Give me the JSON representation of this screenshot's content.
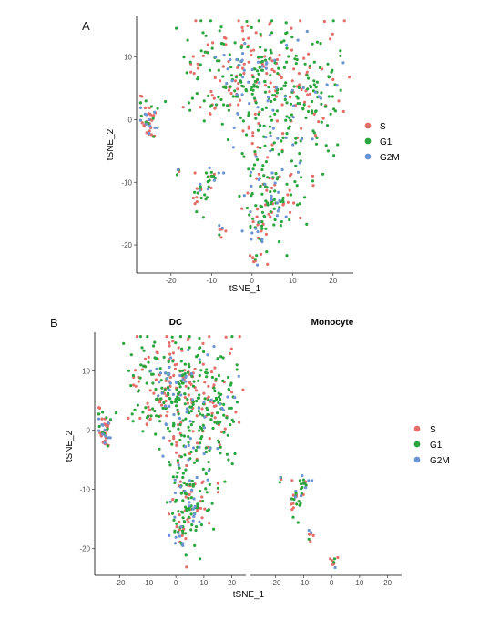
{
  "colors": {
    "S": "#E46E6A",
    "G1": "#2BA53E",
    "G2M": "#6C94D2"
  },
  "legend": [
    "S",
    "G1",
    "G2M"
  ],
  "panelA": {
    "letter": "A",
    "xlabel": "tSNE_1",
    "ylabel": "tSNE_2"
  },
  "panelB": {
    "letter": "B",
    "xlabel": "tSNE_1",
    "ylabel": "tSNE_2",
    "facets": [
      "DC",
      "Monocyte"
    ]
  },
  "chart_data": [
    {
      "type": "scatter",
      "panel": "A",
      "xlabel": "tSNE_1",
      "ylabel": "tSNE_2",
      "xlim": [
        -28.5,
        25
      ],
      "ylim": [
        -24.5,
        16.5
      ],
      "xticks": [
        -20,
        -10,
        0,
        10,
        20
      ],
      "yticks": [
        10,
        0,
        -10,
        -20
      ],
      "legend": [
        "S",
        "G1",
        "G2M"
      ],
      "grid": false,
      "series": [
        {
          "name": "S",
          "points": []
        },
        {
          "name": "G1",
          "points": []
        },
        {
          "name": "G2M",
          "points": []
        }
      ],
      "clusters": [
        {
          "cx": 0.5,
          "cy": 7.5,
          "sx": 9,
          "sy": 4.5,
          "n": 330,
          "mix": [
            0.34,
            0.54,
            0.12
          ]
        },
        {
          "cx": 15,
          "cy": 3,
          "sx": 4,
          "sy": 3.5,
          "n": 70,
          "mix": [
            0.3,
            0.58,
            0.12
          ]
        },
        {
          "cx": 5,
          "cy": -5,
          "sx": 5,
          "sy": 4.5,
          "n": 80,
          "mix": [
            0.22,
            0.64,
            0.14
          ]
        },
        {
          "cx": 4,
          "cy": -13,
          "sx": 3.5,
          "sy": 3.5,
          "n": 110,
          "mix": [
            0.26,
            0.56,
            0.18
          ]
        },
        {
          "cx": 2,
          "cy": -18.5,
          "sx": 1.3,
          "sy": 2.2,
          "n": 22,
          "mix": [
            0.4,
            0.4,
            0.2
          ]
        },
        {
          "cx": -25.5,
          "cy": 0,
          "sx": 1.3,
          "sy": 1.5,
          "n": 48,
          "mix": [
            0.5,
            0.25,
            0.25
          ]
        },
        {
          "cx": -12,
          "cy": -11,
          "sx": 1.5,
          "sy": 1.4,
          "n": 26,
          "mix": [
            0.25,
            0.65,
            0.1
          ]
        },
        {
          "cx": -9.5,
          "cy": -9.3,
          "sx": 0.9,
          "sy": 0.5,
          "n": 6,
          "mix": [
            0.34,
            0.33,
            0.33
          ]
        },
        {
          "cx": -18,
          "cy": -8.5,
          "sx": 0.4,
          "sy": 0.4,
          "n": 4,
          "mix": [
            0.2,
            0.3,
            0.5
          ]
        },
        {
          "cx": -10.5,
          "cy": -8.5,
          "sx": 0.5,
          "sy": 0.4,
          "n": 4,
          "mix": [
            0.2,
            0.3,
            0.5
          ]
        },
        {
          "cx": -7.5,
          "cy": -17.5,
          "sx": 0.7,
          "sy": 0.8,
          "n": 7,
          "mix": [
            0.45,
            0.15,
            0.4
          ]
        },
        {
          "cx": 0.5,
          "cy": -22.3,
          "sx": 0.6,
          "sy": 0.4,
          "n": 6,
          "mix": [
            0.55,
            0.2,
            0.25
          ]
        }
      ]
    },
    {
      "type": "scatter",
      "panel": "B",
      "facets": [
        "DC",
        "Monocyte"
      ],
      "xlabel": "tSNE_1",
      "ylabel": "tSNE_2",
      "xlim": [
        -29,
        25
      ],
      "ylim": [
        -24.5,
        16.5
      ],
      "xticks": [
        -20,
        -10,
        0,
        10,
        20
      ],
      "yticks": [
        10,
        0,
        -10,
        -20
      ],
      "legend": [
        "S",
        "G1",
        "G2M"
      ],
      "grid": false,
      "series": [
        {
          "name": "S",
          "points": []
        },
        {
          "name": "G1",
          "points": []
        },
        {
          "name": "G2M",
          "points": []
        }
      ]
    }
  ]
}
